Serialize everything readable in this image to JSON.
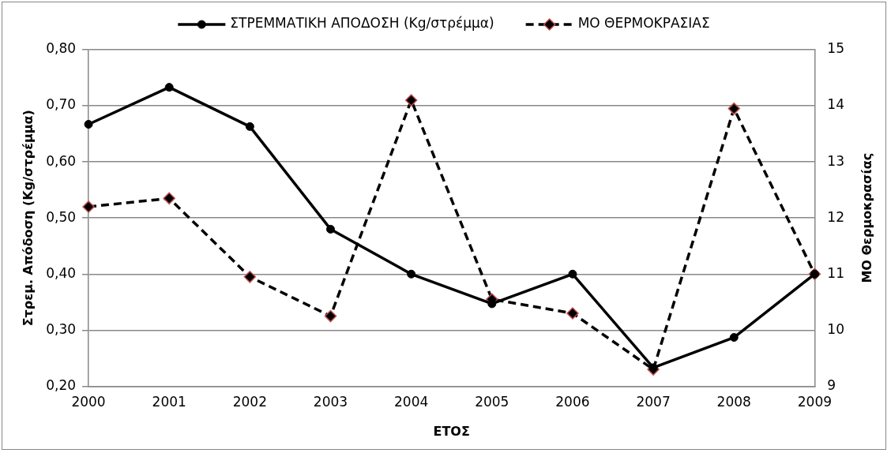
{
  "chart_data": {
    "type": "line",
    "xlabel": "ΕΤΟΣ",
    "ylabel": "Στρεμ. Απόδοση (Kg/στρέμμα)",
    "y2label": "ΜΟ Θερμοκρασίας",
    "categories": [
      "2000",
      "2001",
      "2002",
      "2003",
      "2004",
      "2005",
      "2006",
      "2007",
      "2008",
      "2009"
    ],
    "series": [
      {
        "name": "ΣΤΡΕΜΜΑΤΙΚΗ ΑΠΟΔΟΣΗ (Kg/στρέμμα)",
        "color": "#000000",
        "marker": "circle",
        "line_style": "solid",
        "values": [
          0.667,
          0.733,
          0.663,
          0.48,
          0.4,
          0.347,
          0.4,
          0.233,
          0.287,
          0.4
        ]
      },
      {
        "name": "ΜΟ ΘΕΡΜΟΚΡΑΣΙΑΣ",
        "color": "#000000",
        "marker": "diamond",
        "line_style": "dashed",
        "axis": "y2",
        "values": [
          12.2,
          12.35,
          10.95,
          10.25,
          14.1,
          10.55,
          10.3,
          9.3,
          13.95,
          11.0
        ]
      }
    ],
    "ylim": [
      0.2,
      0.8
    ],
    "yticks": [
      {
        "value": 0.2,
        "label": "0,20"
      },
      {
        "value": 0.3,
        "label": "0,30"
      },
      {
        "value": 0.4,
        "label": "0,40"
      },
      {
        "value": 0.5,
        "label": "0,50"
      },
      {
        "value": 0.6,
        "label": "0,60"
      },
      {
        "value": 0.7,
        "label": "0,70"
      },
      {
        "value": 0.8,
        "label": "0,80"
      }
    ],
    "y2lim": [
      9,
      15
    ],
    "y2ticks": [
      9,
      10,
      11,
      12,
      13,
      14,
      15
    ],
    "grid": "y",
    "legend": "top"
  }
}
